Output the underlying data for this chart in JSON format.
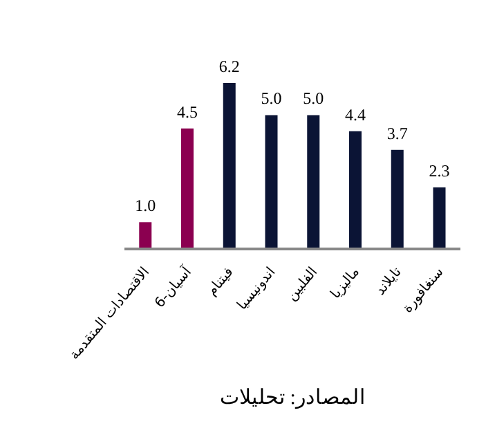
{
  "chart_data": {
    "type": "bar",
    "categories": [
      "الاقتصادات المتقدمة",
      "آسيان-6",
      "فيتنام",
      "اندونيسيا",
      "الفلبين",
      "ماليزيا",
      "تايلاند",
      "سنغافورة"
    ],
    "values": [
      1.0,
      4.5,
      6.2,
      5.0,
      5.0,
      4.4,
      3.7,
      2.3
    ],
    "colors": [
      "#8b0050",
      "#8b0050",
      "#0b1435",
      "#0b1435",
      "#0b1435",
      "#0b1435",
      "#0b1435",
      "#0b1435"
    ],
    "value_labels": [
      "1.0",
      "4.5",
      "6.2",
      "5.0",
      "5.0",
      "4.4",
      "3.7",
      "2.3"
    ],
    "annotations": [
      "المصادر: تحليلات"
    ]
  }
}
